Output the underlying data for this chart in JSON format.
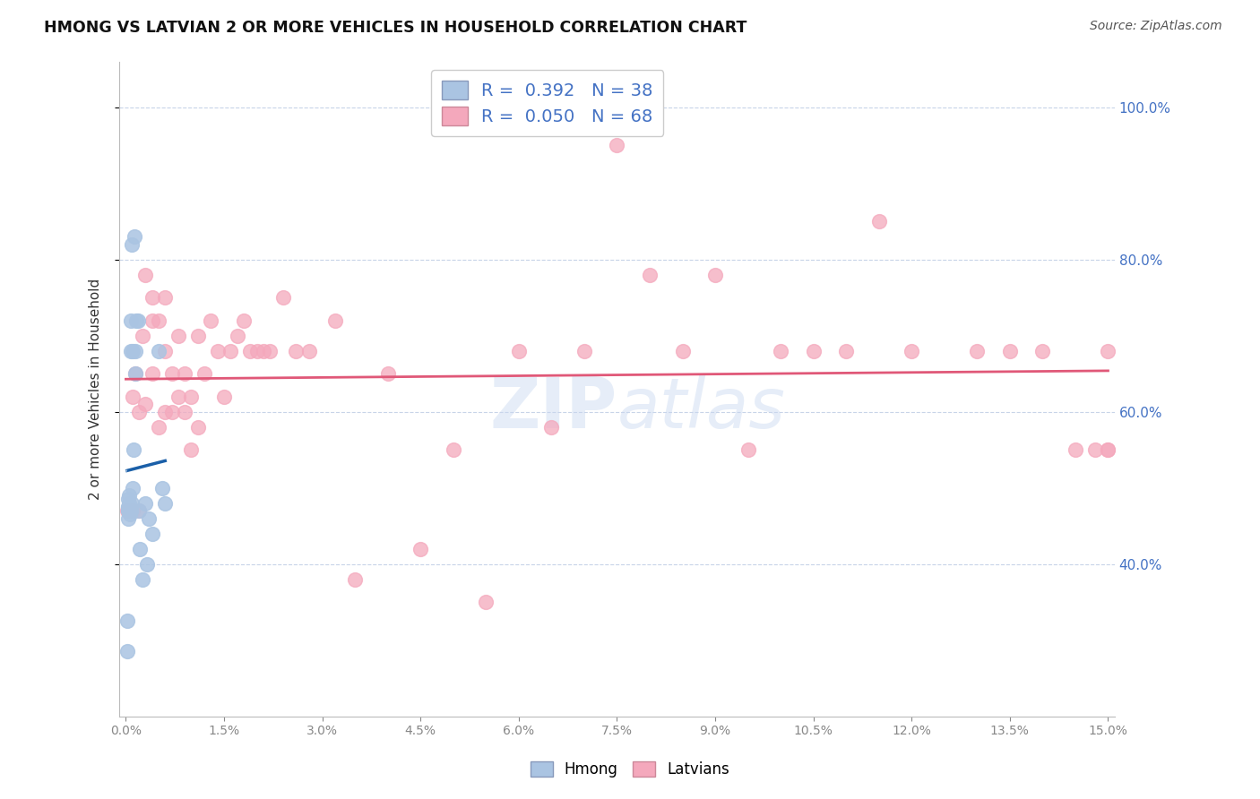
{
  "title": "HMONG VS LATVIAN 2 OR MORE VEHICLES IN HOUSEHOLD CORRELATION CHART",
  "source": "Source: ZipAtlas.com",
  "ylabel": "2 or more Vehicles in Household",
  "watermark": "ZIPatlas",
  "legend_hmong_R": "0.392",
  "legend_hmong_N": "38",
  "legend_latvian_R": "0.050",
  "legend_latvian_N": "68",
  "hmong_color": "#aac4e2",
  "latvian_color": "#f4a8bc",
  "hmong_line_color": "#1a5fa8",
  "latvian_line_color": "#e05878",
  "hmong_dashed_color": "#aac4e2",
  "xmin": 0.0,
  "xmax": 0.15,
  "ymin": 0.2,
  "ymax": 1.06,
  "hmong_x": [
    0.0002,
    0.0002,
    0.0003,
    0.0003,
    0.0003,
    0.0004,
    0.0004,
    0.0004,
    0.0005,
    0.0005,
    0.0005,
    0.0006,
    0.0006,
    0.0006,
    0.0007,
    0.0007,
    0.0008,
    0.0008,
    0.0009,
    0.0009,
    0.001,
    0.001,
    0.0012,
    0.0013,
    0.0014,
    0.0015,
    0.0016,
    0.0018,
    0.002,
    0.0022,
    0.0025,
    0.003,
    0.0032,
    0.0035,
    0.004,
    0.005,
    0.0055,
    0.006
  ],
  "hmong_y": [
    0.285,
    0.325,
    0.47,
    0.475,
    0.485,
    0.46,
    0.47,
    0.475,
    0.47,
    0.48,
    0.49,
    0.465,
    0.47,
    0.475,
    0.47,
    0.68,
    0.47,
    0.72,
    0.48,
    0.82,
    0.5,
    0.68,
    0.55,
    0.83,
    0.65,
    0.68,
    0.72,
    0.72,
    0.47,
    0.42,
    0.38,
    0.48,
    0.4,
    0.46,
    0.44,
    0.68,
    0.5,
    0.48
  ],
  "latvian_x": [
    0.0002,
    0.001,
    0.001,
    0.0015,
    0.002,
    0.002,
    0.0025,
    0.003,
    0.003,
    0.004,
    0.004,
    0.004,
    0.005,
    0.005,
    0.006,
    0.006,
    0.006,
    0.007,
    0.007,
    0.008,
    0.008,
    0.009,
    0.009,
    0.01,
    0.01,
    0.011,
    0.011,
    0.012,
    0.013,
    0.014,
    0.015,
    0.016,
    0.017,
    0.018,
    0.019,
    0.02,
    0.021,
    0.022,
    0.024,
    0.026,
    0.028,
    0.032,
    0.035,
    0.04,
    0.045,
    0.05,
    0.055,
    0.06,
    0.065,
    0.07,
    0.075,
    0.08,
    0.085,
    0.09,
    0.095,
    0.1,
    0.105,
    0.11,
    0.115,
    0.12,
    0.13,
    0.135,
    0.14,
    0.145,
    0.148,
    0.15,
    0.15,
    0.15
  ],
  "latvian_y": [
    0.47,
    0.47,
    0.62,
    0.65,
    0.47,
    0.6,
    0.7,
    0.61,
    0.78,
    0.65,
    0.72,
    0.75,
    0.58,
    0.72,
    0.6,
    0.68,
    0.75,
    0.6,
    0.65,
    0.62,
    0.7,
    0.6,
    0.65,
    0.55,
    0.62,
    0.58,
    0.7,
    0.65,
    0.72,
    0.68,
    0.62,
    0.68,
    0.7,
    0.72,
    0.68,
    0.68,
    0.68,
    0.68,
    0.75,
    0.68,
    0.68,
    0.72,
    0.38,
    0.65,
    0.42,
    0.55,
    0.35,
    0.68,
    0.58,
    0.68,
    0.95,
    0.78,
    0.68,
    0.78,
    0.55,
    0.68,
    0.68,
    0.68,
    0.85,
    0.68,
    0.68,
    0.68,
    0.68,
    0.55,
    0.55,
    0.68,
    0.55,
    0.55
  ]
}
